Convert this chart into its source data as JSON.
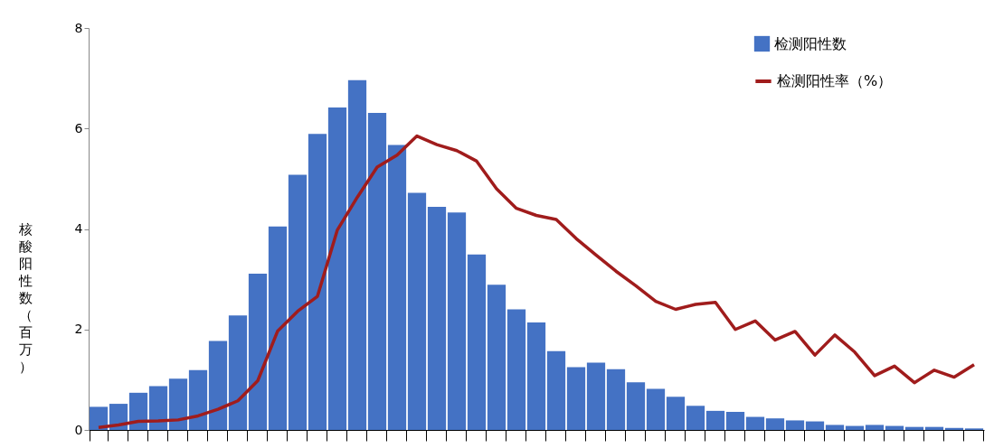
{
  "chart_data": {
    "type": "bar",
    "ylabel": "核酸阳性数（百万）",
    "categories": [
      null,
      null,
      null,
      null,
      null,
      null,
      null,
      null,
      null,
      null,
      null,
      null,
      null,
      null,
      null,
      null,
      null,
      null,
      null,
      null,
      null,
      null,
      null,
      null,
      null,
      null,
      null,
      null,
      null,
      null,
      null,
      null,
      null,
      null,
      null,
      null,
      null,
      null,
      null,
      null,
      null,
      null,
      null,
      null,
      null
    ],
    "ylim": [
      0,
      8
    ],
    "yticks": [
      0,
      2,
      4,
      6,
      8
    ],
    "grid": false,
    "legend": "top right",
    "series": [
      {
        "name": "检测阳性数",
        "color": "#4472c4",
        "values": [
          0.46,
          0.52,
          0.74,
          0.87,
          1.02,
          1.19,
          1.77,
          2.28,
          3.11,
          4.05,
          5.08,
          5.89,
          6.42,
          6.96,
          6.31,
          5.67,
          4.72,
          4.44,
          4.33,
          3.49,
          2.89,
          2.4,
          2.14,
          1.57,
          1.25,
          1.34,
          1.21,
          0.95,
          0.82,
          0.66,
          0.48,
          0.38,
          0.36,
          0.26,
          0.23,
          0.19,
          0.17,
          0.1,
          0.08,
          0.1,
          0.08,
          0.06,
          0.06,
          0.04,
          0.03
        ]
      },
      {
        "name": "检测阳性率（%）",
        "type": "line",
        "color": "#a01c1c",
        "values": [
          0.05,
          0.1,
          0.17,
          0.18,
          0.2,
          0.28,
          0.41,
          0.58,
          0.98,
          1.97,
          2.36,
          2.66,
          3.98,
          4.63,
          5.23,
          5.47,
          5.85,
          5.68,
          5.56,
          5.35,
          4.8,
          4.41,
          4.27,
          4.19,
          3.81,
          3.48,
          3.16,
          2.87,
          2.56,
          2.4,
          2.5,
          2.54,
          2.0,
          2.17,
          1.79,
          1.96,
          1.49,
          1.89,
          1.55,
          1.08,
          1.27,
          0.94,
          1.19,
          1.05,
          1.3
        ]
      }
    ]
  }
}
